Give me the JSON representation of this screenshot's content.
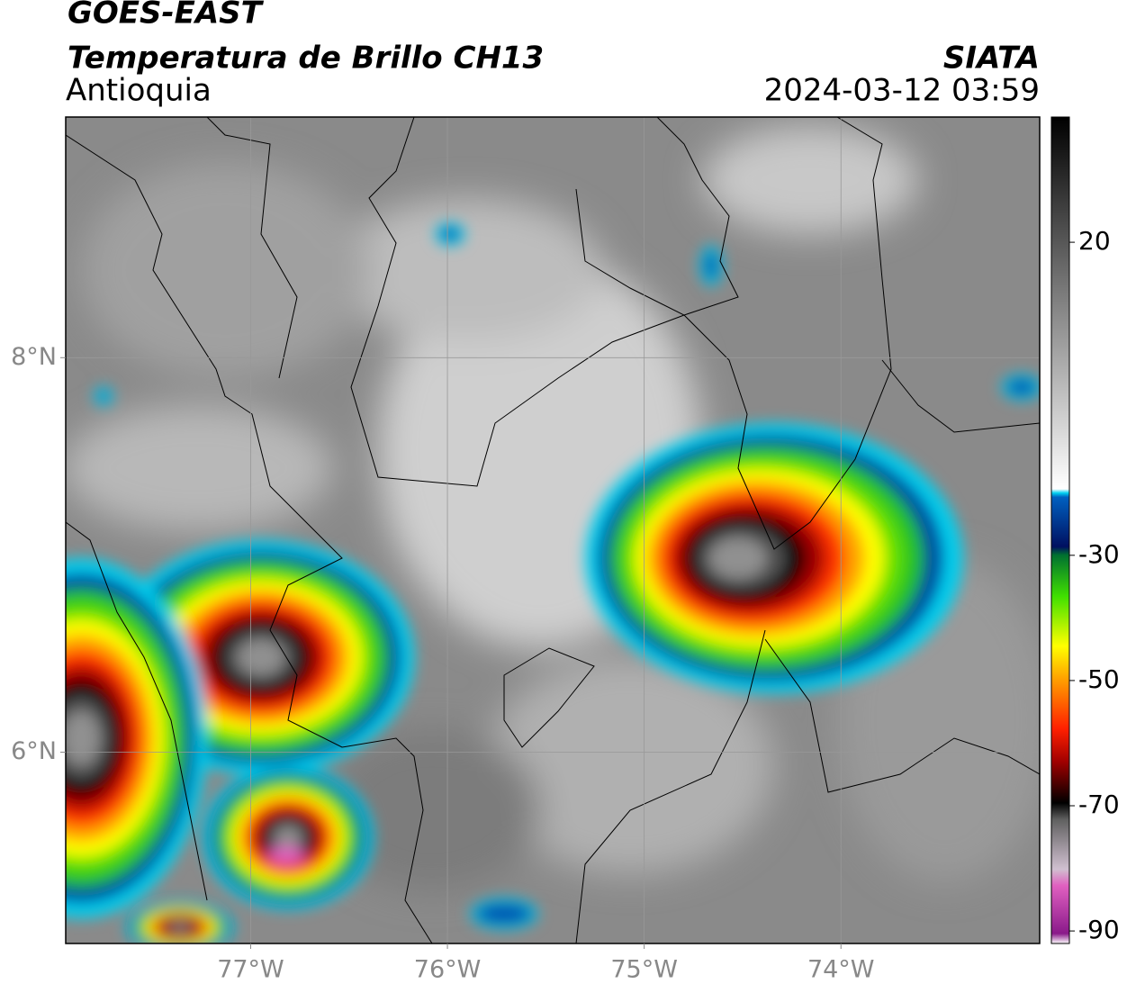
{
  "map": {
    "title_line1": "GOES-EAST",
    "title_line2": "Temperatura de Brillo CH13",
    "region": "Antioquia",
    "source": "SIATA",
    "datetime": "2024-03-12 03:59",
    "xlim": [
      -77.94,
      -72.99
    ],
    "ylim": [
      5.03,
      9.22
    ],
    "xticks": [
      {
        "value": -77,
        "label": "77°W"
      },
      {
        "value": -76,
        "label": "76°W"
      },
      {
        "value": -75,
        "label": "75°W"
      },
      {
        "value": -74,
        "label": "74°W"
      }
    ],
    "yticks": [
      {
        "value": 8,
        "label": "8°N"
      },
      {
        "value": 6,
        "label": "6°N"
      }
    ],
    "grid": true,
    "colorbar": {
      "lim": [
        -92,
        40
      ],
      "ticks": [
        20,
        -30,
        -50,
        -70,
        -90
      ]
    }
  }
}
